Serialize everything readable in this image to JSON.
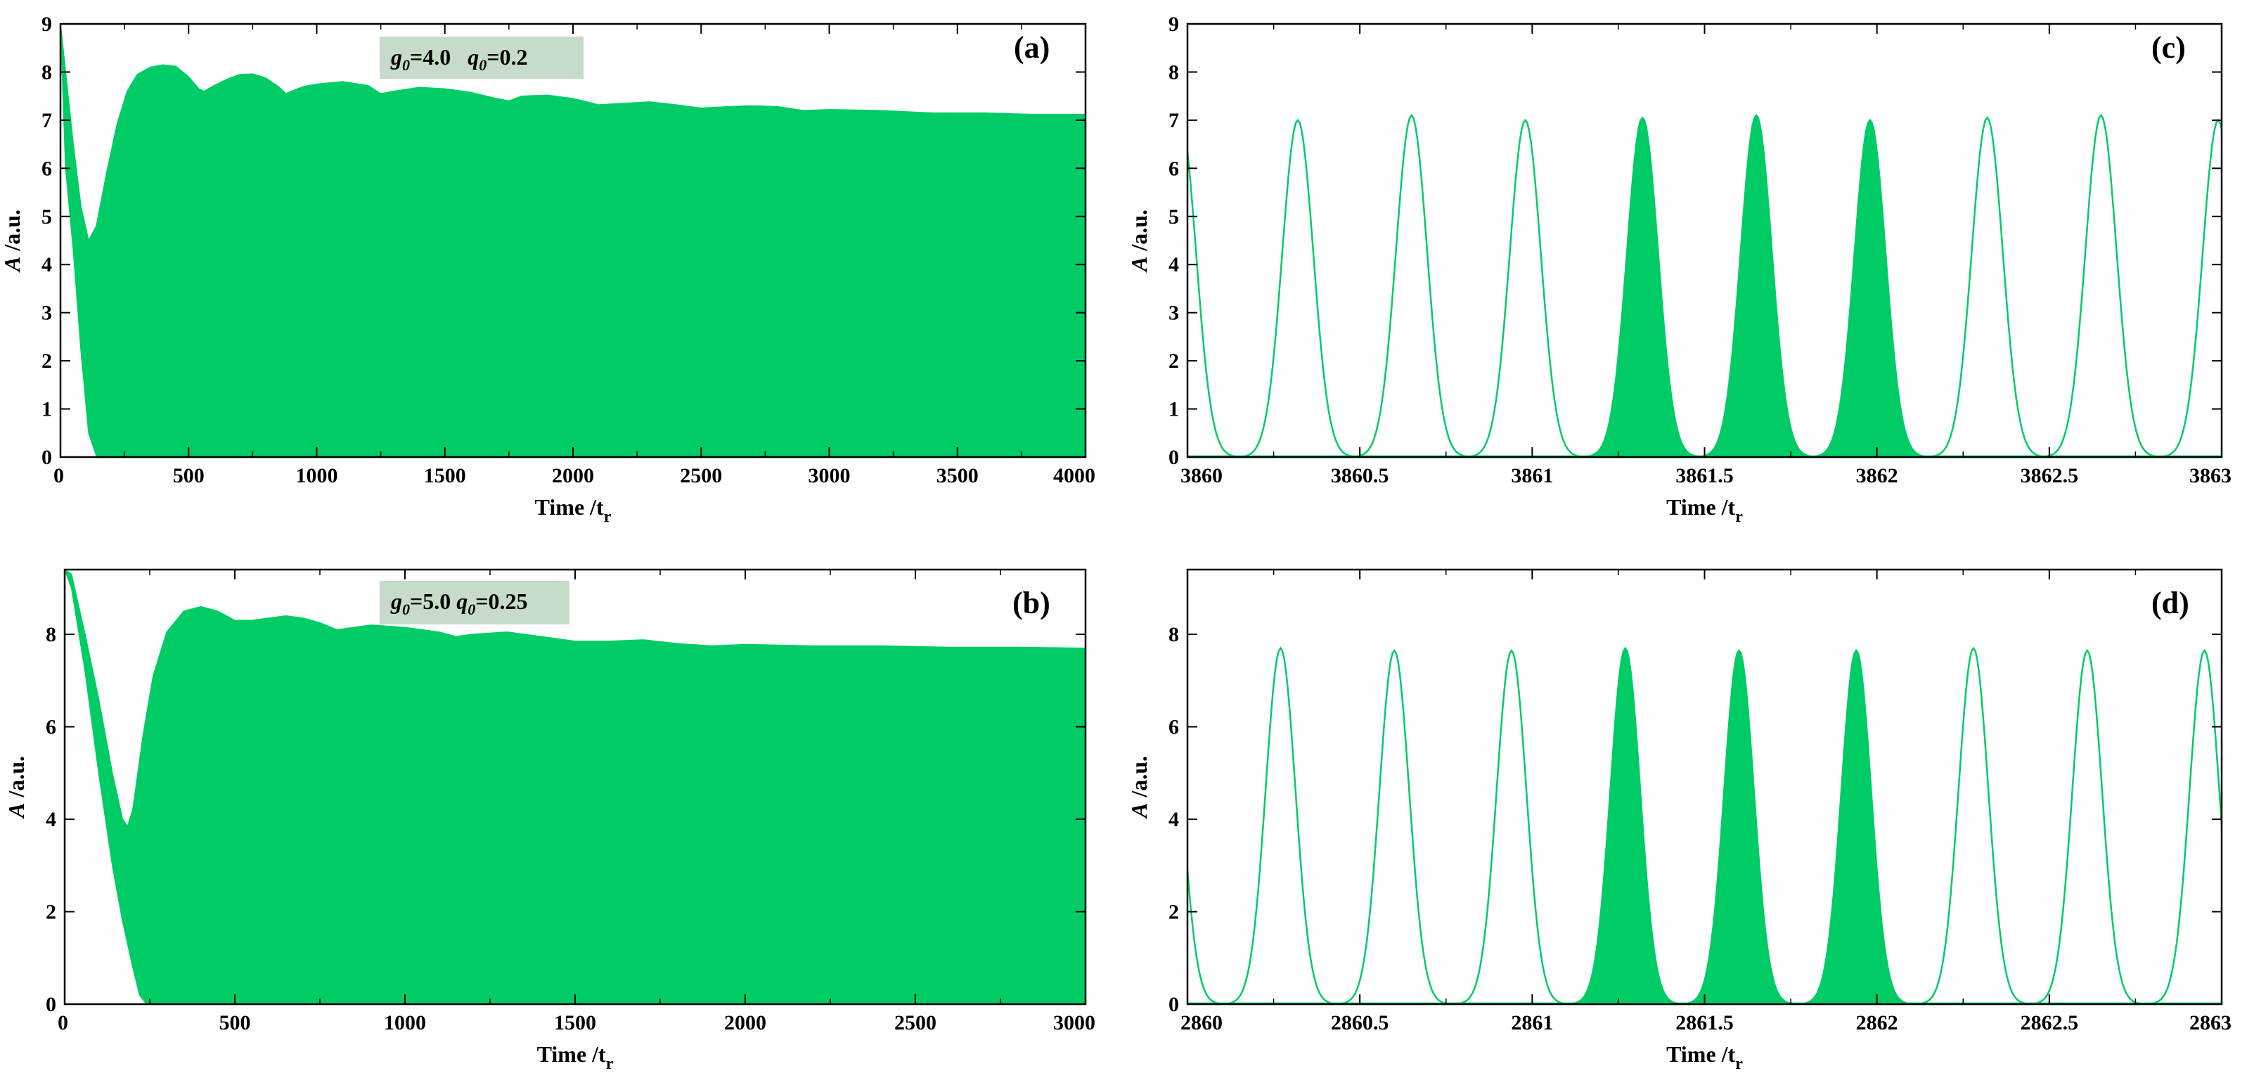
{
  "colors": {
    "trace": "#00cc66",
    "annotation_box": "#c6dcc8",
    "axes": "#000000",
    "background": "#ffffff"
  },
  "chart_data": [
    {
      "type": "area",
      "panel": "(a)",
      "annotation": {
        "g0": "4.0",
        "q0": "0.2"
      },
      "xlabel": "Time",
      "xunit": "t",
      "xunit_sub": "r",
      "ylabel": "A",
      "yunit": "/a.u.",
      "xlim": [
        0,
        4000
      ],
      "ylim": [
        0,
        9
      ],
      "xticks": [
        0,
        500,
        1000,
        1500,
        2000,
        2500,
        3000,
        3500,
        4000
      ],
      "yticks": [
        0,
        1,
        2,
        3,
        4,
        5,
        6,
        7,
        8,
        9
      ],
      "upper_envelope": {
        "x": [
          0,
          20,
          50,
          80,
          110,
          140,
          180,
          220,
          260,
          300,
          350,
          400,
          450,
          500,
          540,
          560,
          600,
          650,
          700,
          750,
          800,
          850,
          880,
          900,
          950,
          1000,
          1100,
          1200,
          1250,
          1300,
          1400,
          1500,
          1600,
          1700,
          1750,
          1800,
          1900,
          2000,
          2100,
          2200,
          2300,
          2400,
          2500,
          2600,
          2700,
          2800,
          2900,
          3000,
          3200,
          3400,
          3600,
          3800,
          4000
        ],
        "y": [
          9,
          8.0,
          6.5,
          5.2,
          4.5,
          4.8,
          5.9,
          6.9,
          7.6,
          7.95,
          8.1,
          8.15,
          8.12,
          7.9,
          7.65,
          7.6,
          7.72,
          7.85,
          7.95,
          7.96,
          7.88,
          7.7,
          7.55,
          7.6,
          7.7,
          7.75,
          7.8,
          7.72,
          7.55,
          7.6,
          7.68,
          7.65,
          7.58,
          7.45,
          7.4,
          7.5,
          7.52,
          7.45,
          7.32,
          7.35,
          7.38,
          7.32,
          7.25,
          7.28,
          7.3,
          7.28,
          7.2,
          7.22,
          7.2,
          7.15,
          7.15,
          7.12,
          7.12
        ]
      },
      "lower_envelope": {
        "x": [
          0,
          20,
          50,
          80,
          110,
          140,
          160,
          4000
        ],
        "y": [
          9,
          6.0,
          4.3,
          2.2,
          0.5,
          0.03,
          0,
          0
        ]
      }
    },
    {
      "type": "area",
      "panel": "(b)",
      "annotation": {
        "g0": "5.0",
        "q0": "0.25"
      },
      "xlabel": "Time",
      "xunit": "t",
      "xunit_sub": "r",
      "ylabel": "A",
      "yunit": "/a.u.",
      "xlim": [
        0,
        3000
      ],
      "ylim": [
        0,
        9.4
      ],
      "xticks": [
        0,
        500,
        1000,
        1500,
        2000,
        2500,
        3000
      ],
      "yticks": [
        0,
        2,
        4,
        6,
        8
      ],
      "upper_envelope": {
        "x": [
          0,
          20,
          60,
          100,
          140,
          170,
          185,
          200,
          230,
          260,
          300,
          350,
          400,
          450,
          500,
          550,
          600,
          650,
          700,
          750,
          800,
          850,
          900,
          1000,
          1100,
          1150,
          1200,
          1300,
          1400,
          1500,
          1600,
          1700,
          1800,
          1900,
          2000,
          2200,
          2400,
          2600,
          2800,
          3000
        ],
        "y": [
          9.4,
          9.3,
          8.0,
          6.6,
          5.0,
          4.0,
          3.85,
          4.2,
          5.8,
          7.1,
          8.05,
          8.5,
          8.6,
          8.5,
          8.3,
          8.3,
          8.35,
          8.4,
          8.35,
          8.25,
          8.1,
          8.15,
          8.2,
          8.15,
          8.05,
          7.95,
          8.0,
          8.05,
          7.95,
          7.85,
          7.85,
          7.88,
          7.8,
          7.75,
          7.78,
          7.75,
          7.75,
          7.72,
          7.72,
          7.7
        ]
      },
      "lower_envelope": {
        "x": [
          0,
          20,
          60,
          100,
          140,
          170,
          200,
          220,
          240,
          3000
        ],
        "y": [
          9.4,
          9.0,
          7.2,
          5.0,
          3.0,
          1.8,
          0.8,
          0.2,
          0,
          0
        ]
      }
    },
    {
      "type": "line",
      "panel": "(c)",
      "xlabel": "Time",
      "xunit": "t",
      "xunit_sub": "r",
      "ylabel": "A",
      "yunit": "/a.u.",
      "xlim": [
        3860,
        3863
      ],
      "ylim": [
        0,
        9
      ],
      "xticks": [
        3860,
        3860.5,
        3861,
        3861.5,
        3862,
        3862.5,
        3863
      ],
      "yticks": [
        0,
        1,
        2,
        3,
        4,
        5,
        6,
        7,
        8,
        9
      ],
      "pulse_width": 0.045,
      "pulses": [
        {
          "center": 3859.98,
          "peak": 7.0,
          "filled": false
        },
        {
          "center": 3860.32,
          "peak": 7.0,
          "filled": false
        },
        {
          "center": 3860.65,
          "peak": 7.1,
          "filled": false
        },
        {
          "center": 3860.98,
          "peak": 7.0,
          "filled": false
        },
        {
          "center": 3861.32,
          "peak": 7.05,
          "filled": true
        },
        {
          "center": 3861.65,
          "peak": 7.1,
          "filled": true
        },
        {
          "center": 3861.98,
          "peak": 7.0,
          "filled": true
        },
        {
          "center": 3862.32,
          "peak": 7.05,
          "filled": false
        },
        {
          "center": 3862.65,
          "peak": 7.1,
          "filled": false
        },
        {
          "center": 3862.99,
          "peak": 7.0,
          "filled": false
        }
      ]
    },
    {
      "type": "line",
      "panel": "(d)",
      "xlabel": "Time",
      "xunit": "t",
      "xunit_sub": "r",
      "ylabel": "A",
      "yunit": "/a.u.",
      "xlim": [
        2860,
        2863
      ],
      "ylim": [
        0,
        9.4
      ],
      "xticks": [
        2860,
        2860.5,
        2861,
        2861.5,
        2862,
        2862.5,
        2863
      ],
      "yticks": [
        0,
        2,
        4,
        6,
        8
      ],
      "pulse_width": 0.043,
      "pulses": [
        {
          "center": 2859.94,
          "peak": 7.7,
          "filled": false
        },
        {
          "center": 2860.27,
          "peak": 7.7,
          "filled": false
        },
        {
          "center": 2860.6,
          "peak": 7.65,
          "filled": false
        },
        {
          "center": 2860.94,
          "peak": 7.65,
          "filled": false
        },
        {
          "center": 2861.27,
          "peak": 7.7,
          "filled": true
        },
        {
          "center": 2861.6,
          "peak": 7.65,
          "filled": true
        },
        {
          "center": 2861.94,
          "peak": 7.65,
          "filled": true
        },
        {
          "center": 2862.28,
          "peak": 7.7,
          "filled": false
        },
        {
          "center": 2862.61,
          "peak": 7.65,
          "filled": false
        },
        {
          "center": 2862.95,
          "peak": 7.65,
          "filled": false
        }
      ]
    }
  ]
}
